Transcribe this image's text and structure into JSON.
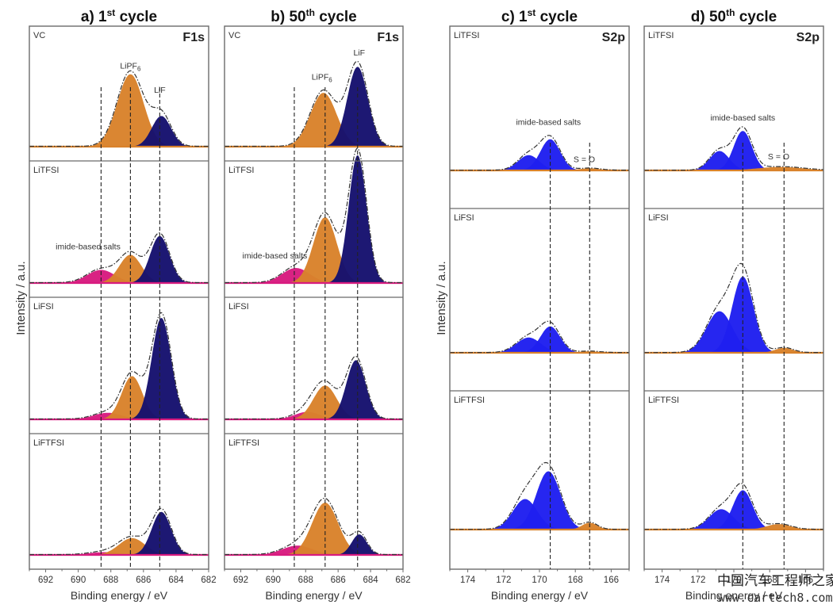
{
  "figure": {
    "y_axis_label": "Intensity / a.u.",
    "x_axis_label": "Binding energy / eV",
    "watermark": {
      "line1": "中国汽车工程师之家",
      "line2": "www.cartech8.com"
    }
  },
  "colors": {
    "LiPF6": "#d9822b",
    "LiF": "#16116e",
    "imide_F": "#d81b7f",
    "imide_S": "#1f1ff0",
    "S_O": "#d9822b",
    "envelope": "#333333",
    "frame": "#6b6b6b"
  },
  "chart_data": [
    {
      "id": "a",
      "type": "area",
      "title": "a) 1",
      "title_sup": "st",
      "title_tail": " cycle",
      "core_level": "F1s",
      "xlim": [
        693,
        682
      ],
      "xticks": [
        692,
        690,
        688,
        686,
        684,
        682
      ],
      "reference_lines_eV": [
        688.6,
        686.8,
        685.0
      ],
      "subpanels": [
        {
          "sample": "VC",
          "annotations": [
            {
              "text": "LiPF",
              "sub": "6",
              "x": 686.8,
              "y": 0.84
            },
            {
              "text": "LiF",
              "x": 685.0,
              "y": 0.58
            }
          ],
          "components": [
            {
              "name": "LiPF6",
              "center": 686.8,
              "fwhm": 1.9,
              "height": 0.78
            },
            {
              "name": "LiF",
              "center": 684.9,
              "fwhm": 1.4,
              "height": 0.33
            }
          ]
        },
        {
          "sample": "LiTFSI",
          "annotations": [
            {
              "text": "imide-based salts",
              "x": 689.4,
              "y": 0.36
            }
          ],
          "components": [
            {
              "name": "imide_F",
              "center": 688.6,
              "fwhm": 2.0,
              "height": 0.14
            },
            {
              "name": "LiPF6",
              "center": 686.8,
              "fwhm": 1.6,
              "height": 0.3
            },
            {
              "name": "LiF",
              "center": 685.0,
              "fwhm": 1.4,
              "height": 0.5
            }
          ]
        },
        {
          "sample": "LiFSI",
          "annotations": [],
          "components": [
            {
              "name": "imide_F",
              "center": 688.2,
              "fwhm": 2.0,
              "height": 0.07
            },
            {
              "name": "LiPF6",
              "center": 686.7,
              "fwhm": 1.5,
              "height": 0.46
            },
            {
              "name": "LiF",
              "center": 684.9,
              "fwhm": 1.4,
              "height": 1.08
            }
          ]
        },
        {
          "sample": "LiFTFSI",
          "annotations": [],
          "components": [
            {
              "name": "imide_F",
              "center": 688.4,
              "fwhm": 2.2,
              "height": 0.03
            },
            {
              "name": "LiPF6",
              "center": 686.7,
              "fwhm": 1.9,
              "height": 0.18
            },
            {
              "name": "LiF",
              "center": 684.9,
              "fwhm": 1.4,
              "height": 0.46
            }
          ]
        }
      ]
    },
    {
      "id": "b",
      "type": "area",
      "title": "b) 50",
      "title_sup": "th",
      "title_tail": " cycle",
      "core_level": "F1s",
      "xlim": [
        693,
        682
      ],
      "xticks": [
        692,
        690,
        688,
        686,
        684,
        682
      ],
      "reference_lines_eV": [
        688.7,
        686.8,
        684.8
      ],
      "subpanels": [
        {
          "sample": "VC",
          "annotations": [
            {
              "text": "LiPF",
              "sub": "6",
              "x": 687.0,
              "y": 0.72
            },
            {
              "text": "LiF",
              "x": 684.7,
              "y": 0.98
            }
          ],
          "components": [
            {
              "name": "LiPF6",
              "center": 686.9,
              "fwhm": 1.9,
              "height": 0.58
            },
            {
              "name": "LiF",
              "center": 684.8,
              "fwhm": 1.5,
              "height": 0.86
            }
          ]
        },
        {
          "sample": "LiTFSI",
          "annotations": [
            {
              "text": "imide-based salts",
              "x": 689.9,
              "y": 0.26
            }
          ],
          "components": [
            {
              "name": "imide_F",
              "center": 688.6,
              "fwhm": 2.0,
              "height": 0.16
            },
            {
              "name": "LiPF6",
              "center": 686.8,
              "fwhm": 1.7,
              "height": 0.7
            },
            {
              "name": "LiF",
              "center": 684.8,
              "fwhm": 1.3,
              "height": 1.36
            }
          ]
        },
        {
          "sample": "LiFSI",
          "annotations": [],
          "components": [
            {
              "name": "imide_F",
              "center": 687.9,
              "fwhm": 1.8,
              "height": 0.08
            },
            {
              "name": "LiPF6",
              "center": 686.8,
              "fwhm": 1.7,
              "height": 0.36
            },
            {
              "name": "LiF",
              "center": 684.9,
              "fwhm": 1.4,
              "height": 0.63
            }
          ]
        },
        {
          "sample": "LiFTFSI",
          "annotations": [],
          "components": [
            {
              "name": "imide_F",
              "center": 688.5,
              "fwhm": 2.2,
              "height": 0.1
            },
            {
              "name": "LiPF6",
              "center": 686.8,
              "fwhm": 1.9,
              "height": 0.56
            },
            {
              "name": "LiF",
              "center": 684.7,
              "fwhm": 1.1,
              "height": 0.22
            }
          ]
        }
      ]
    },
    {
      "id": "c",
      "type": "area",
      "title": "c) 1",
      "title_sup": "st",
      "title_tail": " cycle",
      "core_level": "S2p",
      "xlim": [
        175,
        165
      ],
      "xticks": [
        174,
        172,
        170,
        168,
        166
      ],
      "reference_lines_eV": [
        169.4,
        167.2
      ],
      "subpanels": [
        {
          "sample": "LiTFSI",
          "annotations": [
            {
              "text": "imide-based salts",
              "x": 169.5,
              "y": 0.66
            },
            {
              "text": "S = O",
              "x": 167.5,
              "y": 0.12
            }
          ],
          "components": [
            {
              "name": "imide_S",
              "center": 170.6,
              "fwhm": 1.4,
              "height": 0.22
            },
            {
              "name": "imide_S",
              "center": 169.4,
              "fwhm": 1.3,
              "height": 0.45
            },
            {
              "name": "S_O",
              "center": 167.2,
              "fwhm": 1.4,
              "height": 0.03
            }
          ]
        },
        {
          "sample": "LiFSI",
          "annotations": [],
          "components": [
            {
              "name": "imide_S",
              "center": 170.6,
              "fwhm": 1.6,
              "height": 0.22
            },
            {
              "name": "imide_S",
              "center": 169.4,
              "fwhm": 1.3,
              "height": 0.38
            },
            {
              "name": "S_O",
              "center": 167.2,
              "fwhm": 1.4,
              "height": 0.02
            }
          ]
        },
        {
          "sample": "LiFTFSI",
          "annotations": [],
          "components": [
            {
              "name": "imide_S",
              "center": 170.8,
              "fwhm": 1.6,
              "height": 0.45
            },
            {
              "name": "imide_S",
              "center": 169.5,
              "fwhm": 1.6,
              "height": 0.86
            },
            {
              "name": "S_O",
              "center": 167.2,
              "fwhm": 1.0,
              "height": 0.1
            }
          ]
        }
      ]
    },
    {
      "id": "d",
      "type": "area",
      "title": "d) 50",
      "title_sup": "th",
      "title_tail": " cycle",
      "core_level": "S2p",
      "xlim": [
        175,
        165
      ],
      "xticks": [
        174,
        172,
        170,
        168,
        166
      ],
      "reference_lines_eV": [
        169.5,
        167.2
      ],
      "subpanels": [
        {
          "sample": "LiTFSI",
          "annotations": [
            {
              "text": "imide-based salts",
              "x": 169.5,
              "y": 0.72
            },
            {
              "text": "S = O",
              "x": 167.5,
              "y": 0.16
            }
          ],
          "components": [
            {
              "name": "imide_S",
              "center": 170.8,
              "fwhm": 1.3,
              "height": 0.28
            },
            {
              "name": "imide_S",
              "center": 169.5,
              "fwhm": 1.2,
              "height": 0.57
            },
            {
              "name": "S_O",
              "center": 167.4,
              "fwhm": 3.0,
              "height": 0.05
            }
          ]
        },
        {
          "sample": "LiFSI",
          "annotations": [],
          "components": [
            {
              "name": "imide_S",
              "center": 170.8,
              "fwhm": 1.7,
              "height": 0.6
            },
            {
              "name": "imide_S",
              "center": 169.5,
              "fwhm": 1.4,
              "height": 1.1
            },
            {
              "name": "S_O",
              "center": 167.2,
              "fwhm": 1.2,
              "height": 0.07
            }
          ]
        },
        {
          "sample": "LiFTFSI",
          "annotations": [],
          "components": [
            {
              "name": "imide_S",
              "center": 170.7,
              "fwhm": 1.6,
              "height": 0.3
            },
            {
              "name": "imide_S",
              "center": 169.5,
              "fwhm": 1.3,
              "height": 0.58
            },
            {
              "name": "S_O",
              "center": 167.5,
              "fwhm": 1.6,
              "height": 0.08
            }
          ]
        }
      ]
    }
  ]
}
